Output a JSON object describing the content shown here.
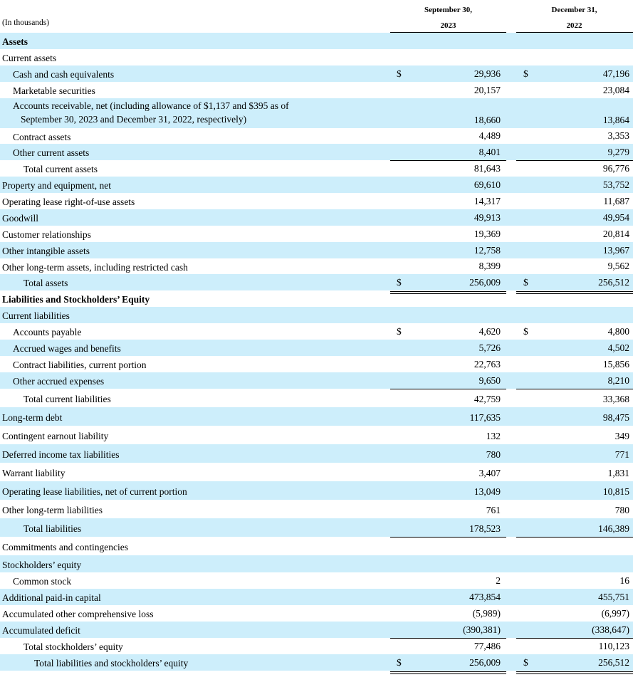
{
  "header": {
    "unit_note": "(In thousands)",
    "col1_line1": "September 30,",
    "col1_line2": "2023",
    "col2_line1": "December 31,",
    "col2_line2": "2022"
  },
  "accent_shade": "#cdeefb",
  "rows": [
    {
      "label": "Assets",
      "level": 0,
      "bold": true
    },
    {
      "label": "Current assets",
      "level": 0
    },
    {
      "label": "Cash and cash equivalents",
      "level": 1,
      "dollar": true,
      "v1": "29,936",
      "v2": "47,196"
    },
    {
      "label": "Marketable securities",
      "level": 1,
      "v1": "20,157",
      "v2": "23,084"
    },
    {
      "label": "Accounts receivable, net (including allowance of $1,137 and $395 as of",
      "label2": "September 30, 2023 and December 31, 2022, respectively)",
      "level": 1,
      "v1": "18,660",
      "v2": "13,864"
    },
    {
      "label": "Contract assets",
      "level": 1,
      "v1": "4,489",
      "v2": "3,353"
    },
    {
      "label": "Other current assets",
      "level": 1,
      "v1": "8,401",
      "v2": "9,279",
      "rule": "single"
    },
    {
      "label": "Total current assets",
      "level": 2,
      "v1": "81,643",
      "v2": "96,776"
    },
    {
      "label": "Property and equipment, net",
      "level": 0,
      "v1": "69,610",
      "v2": "53,752"
    },
    {
      "label": "Operating lease right-of-use assets",
      "level": 0,
      "v1": "14,317",
      "v2": "11,687"
    },
    {
      "label": "Goodwill",
      "level": 0,
      "v1": "49,913",
      "v2": "49,954"
    },
    {
      "label": "Customer relationships",
      "level": 0,
      "v1": "19,369",
      "v2": "20,814"
    },
    {
      "label": "Other intangible assets",
      "level": 0,
      "v1": "12,758",
      "v2": "13,967"
    },
    {
      "label": "Other long-term assets, including restricted cash",
      "level": 0,
      "v1": "8,399",
      "v2": "9,562",
      "rule": "single"
    },
    {
      "label": "Total assets",
      "level": 2,
      "dollar": true,
      "v1": "256,009",
      "v2": "256,512",
      "rule": "double"
    },
    {
      "label": "Liabilities and Stockholders’ Equity",
      "level": 0,
      "bold": true
    },
    {
      "label": "Current liabilities",
      "level": 0
    },
    {
      "label": "Accounts payable",
      "level": 1,
      "dollar": true,
      "v1": "4,620",
      "v2": "4,800"
    },
    {
      "label": "Accrued wages and benefits",
      "level": 1,
      "v1": "5,726",
      "v2": "4,502"
    },
    {
      "label": "Contract liabilities, current portion",
      "level": 1,
      "v1": "22,763",
      "v2": "15,856"
    },
    {
      "label": "Other accrued expenses",
      "level": 1,
      "v1": "9,650",
      "v2": "8,210",
      "rule": "single"
    },
    {
      "label": "Total current liabilities",
      "level": 2,
      "v1": "42,759",
      "v2": "33,368"
    },
    {
      "label": "Long-term debt",
      "level": 0,
      "v1": "117,635",
      "v2": "98,475"
    },
    {
      "label": "Contingent earnout liability",
      "level": 0,
      "v1": "132",
      "v2": "349"
    },
    {
      "label": "Deferred income tax liabilities",
      "level": 0,
      "v1": "780",
      "v2": "771"
    },
    {
      "label": "Warrant liability",
      "level": 0,
      "v1": "3,407",
      "v2": "1,831"
    },
    {
      "label": "Operating lease liabilities, net of current portion",
      "level": 0,
      "v1": "13,049",
      "v2": "10,815"
    },
    {
      "label": "Other long-term liabilities",
      "level": 0,
      "v1": "761",
      "v2": "780",
      "rule": "single"
    },
    {
      "label": "Total liabilities",
      "level": 2,
      "v1": "178,523",
      "v2": "146,389",
      "rule": "single"
    },
    {
      "label": "Commitments and contingencies",
      "level": 0
    },
    {
      "label": "Stockholders’ equity",
      "level": 0
    },
    {
      "label": "Common stock",
      "level": 1,
      "v1": "2",
      "v2": "16"
    },
    {
      "label": "Additional paid-in capital",
      "level": 0,
      "v1": "473,854",
      "v2": "455,751"
    },
    {
      "label": "Accumulated other comprehensive loss",
      "level": 0,
      "v1": "(5,989)",
      "v2": "(6,997)"
    },
    {
      "label": "Accumulated deficit",
      "level": 0,
      "v1": "(390,381)",
      "v2": "(338,647)",
      "rule": "single"
    },
    {
      "label": "Total stockholders’ equity",
      "level": 2,
      "v1": "77,486",
      "v2": "110,123",
      "rule": "single"
    },
    {
      "label": "Total liabilities and stockholders’ equity",
      "level": 3,
      "dollar": true,
      "v1": "256,009",
      "v2": "256,512",
      "rule": "double"
    }
  ]
}
